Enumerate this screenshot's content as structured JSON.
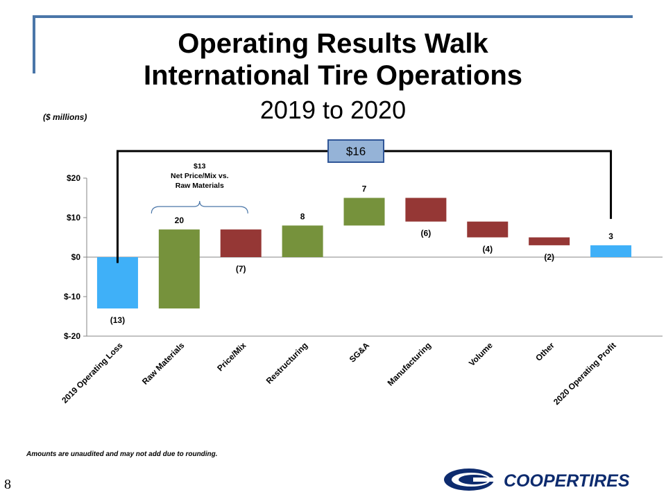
{
  "slide": {
    "title_line1": "Operating Results Walk",
    "title_line2": "International Tire Operations",
    "subtitle": "2019 to 2020",
    "units": "($ millions)",
    "footnote": "Amounts are unaudited and may not add due to rounding.",
    "page_number": "8",
    "logo_text": "COOPERTIRES"
  },
  "colors": {
    "start_end": "#3fb0f8",
    "increase": "#76923c",
    "decrease": "#953735",
    "frame": "#4a76a8",
    "callout_fill": "#95b3d7",
    "callout_border": "#2f5597",
    "logo": "#0d2b6e"
  },
  "chart_data": {
    "type": "bar",
    "subtype": "waterfall",
    "categories": [
      "2019 Operating Loss",
      "Raw Materials",
      "Price/Mix",
      "Restructuring",
      "SG&A",
      "Manufacturing",
      "Volume",
      "Other",
      "2020 Operating Profit"
    ],
    "values": [
      -13,
      20,
      -7,
      8,
      7,
      -6,
      -4,
      -2,
      3
    ],
    "value_labels": [
      "(13)",
      "20",
      "(7)",
      "8",
      "7",
      "(6)",
      "(4)",
      "(2)",
      "3"
    ],
    "kinds": [
      "total",
      "increase",
      "decrease",
      "increase",
      "increase",
      "decrease",
      "decrease",
      "decrease",
      "total"
    ],
    "ylim": [
      -20,
      20
    ],
    "yticks": [
      20,
      10,
      0,
      -10,
      -20
    ],
    "ytick_labels": [
      "$20",
      "$10",
      "$0",
      "$-10",
      "$-20"
    ],
    "total_change_label": "$16",
    "bracket_note": "$13\nNet Price/Mix vs.\nRaw Materials",
    "bracket_note_lines": [
      "$13",
      "Net Price/Mix vs.",
      "Raw Materials"
    ]
  }
}
